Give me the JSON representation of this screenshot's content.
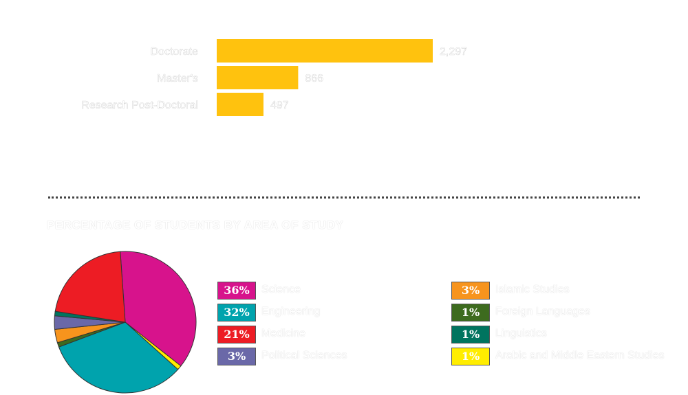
{
  "chart_data": [
    {
      "type": "bar",
      "orientation": "horizontal",
      "categories": [
        "Doctorate",
        "Master's",
        "Research Post-Doctoral"
      ],
      "values": [
        2297,
        866,
        497
      ],
      "value_labels": [
        "2,297",
        "866",
        "497"
      ],
      "xlim": [
        0,
        2297
      ],
      "bar_color": "#FFC20E",
      "grid": false
    },
    {
      "type": "pie",
      "title": "PERCENTAGE OF STUDENTS BY AREA OF STUDY",
      "slices": [
        {
          "pct_label": "36%",
          "label": "Science",
          "value": 36,
          "color": "#D7138C"
        },
        {
          "pct_label": "32%",
          "label": "Engineering",
          "value": 32,
          "color": "#00A3AD"
        },
        {
          "pct_label": "21%",
          "label": "Medicine",
          "value": 21,
          "color": "#ED1C24"
        },
        {
          "pct_label": "3%",
          "label": "Political Sciences",
          "value": 3,
          "color": "#6A68A8"
        },
        {
          "pct_label": "3%",
          "label": "Islamic Studies",
          "value": 3,
          "color": "#F7941D"
        },
        {
          "pct_label": "1%",
          "label": "Foreign Languages",
          "value": 1,
          "color": "#3D6B1E"
        },
        {
          "pct_label": "1%",
          "label": "Linguistics",
          "value": 1,
          "color": "#00745F"
        },
        {
          "pct_label": "1%",
          "label": "Arabic and Middle Eastern Studies",
          "value": 1,
          "color": "#FFED00"
        }
      ],
      "draw_order": [
        "Science",
        "Arabic and Middle Eastern Studies",
        "Engineering",
        "Foreign Languages",
        "Islamic Studies",
        "Political Sciences",
        "Linguistics",
        "Medicine"
      ],
      "legend_placement": "right"
    }
  ]
}
